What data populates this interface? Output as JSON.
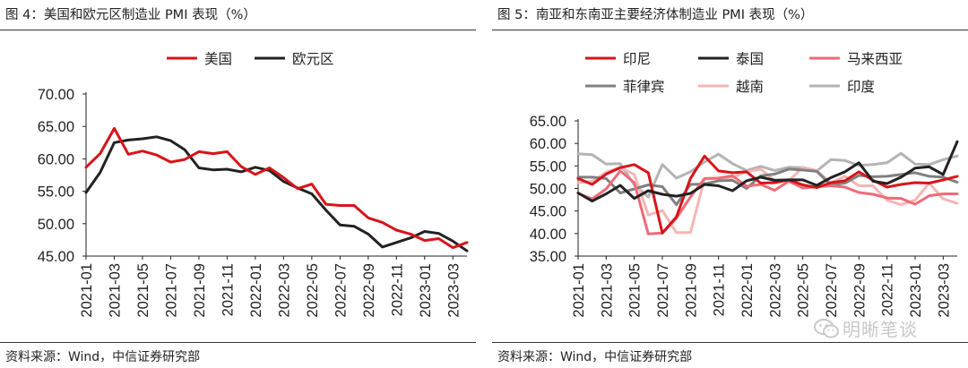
{
  "left": {
    "title": "图 4：美国和欧元区制造业 PMI 表现（%）",
    "source": "资料来源：Wind，中信证券研究部"
  },
  "right": {
    "title": "图 5：南亚和东南亚主要经济体制造业 PMI 表现（%）",
    "source": "资料来源：Wind，中信证券研究部"
  },
  "watermark": "明晰笔谈",
  "chart_data": [
    {
      "type": "line",
      "title": "",
      "xlabel": "",
      "ylabel": "",
      "x": [
        "2021-01",
        "2021-02",
        "2021-03",
        "2021-04",
        "2021-05",
        "2021-06",
        "2021-07",
        "2021-08",
        "2021-09",
        "2021-10",
        "2021-11",
        "2021-12",
        "2022-01",
        "2022-02",
        "2022-03",
        "2022-04",
        "2022-05",
        "2022-06",
        "2022-07",
        "2022-08",
        "2022-09",
        "2022-10",
        "2022-11",
        "2022-12",
        "2023-01",
        "2023-02",
        "2023-03",
        "2023-04"
      ],
      "xticks": [
        "2021-01",
        "2021-03",
        "2021-05",
        "2021-07",
        "2021-09",
        "2021-11",
        "2022-01",
        "2022-03",
        "2022-05",
        "2022-07",
        "2022-09",
        "2022-11",
        "2023-01",
        "2023-03"
      ],
      "yticks": [
        "70.00",
        "65.00",
        "60.00",
        "55.00",
        "50.00",
        "45.00"
      ],
      "ylim": [
        45,
        70
      ],
      "legend_position": "top",
      "series": [
        {
          "name": "美国",
          "color": "#d7141a",
          "values": [
            58.7,
            60.8,
            64.7,
            60.7,
            61.2,
            60.6,
            59.5,
            59.9,
            61.1,
            60.8,
            61.1,
            58.8,
            57.6,
            58.6,
            57.1,
            55.4,
            56.1,
            53.0,
            52.8,
            52.8,
            50.9,
            50.2,
            49.0,
            48.4,
            47.4,
            47.7,
            46.3,
            47.1
          ]
        },
        {
          "name": "欧元区",
          "color": "#222222",
          "values": [
            54.8,
            57.9,
            62.5,
            62.9,
            63.1,
            63.4,
            62.8,
            61.4,
            58.6,
            58.3,
            58.4,
            58.0,
            58.7,
            58.2,
            56.5,
            55.5,
            54.6,
            52.1,
            49.8,
            49.6,
            48.4,
            46.4,
            47.1,
            47.8,
            48.8,
            48.5,
            47.3,
            45.8
          ]
        }
      ]
    },
    {
      "type": "line",
      "title": "",
      "xlabel": "",
      "ylabel": "",
      "x": [
        "2021-01",
        "2021-02",
        "2021-03",
        "2021-04",
        "2021-05",
        "2021-06",
        "2021-07",
        "2021-08",
        "2021-09",
        "2021-10",
        "2021-11",
        "2021-12",
        "2022-01",
        "2022-02",
        "2022-03",
        "2022-04",
        "2022-05",
        "2022-06",
        "2022-07",
        "2022-08",
        "2022-09",
        "2022-10",
        "2022-11",
        "2022-12",
        "2023-01",
        "2023-02",
        "2023-03",
        "2023-04"
      ],
      "xticks": [
        "2021-01",
        "2021-03",
        "2021-05",
        "2021-07",
        "2021-09",
        "2021-11",
        "2022-01",
        "2022-03",
        "2022-05",
        "2022-07",
        "2022-09",
        "2022-11",
        "2023-01",
        "2023-03"
      ],
      "yticks": [
        "65.00",
        "60.00",
        "55.00",
        "50.00",
        "45.00",
        "40.00",
        "35.00"
      ],
      "ylim": [
        35,
        65
      ],
      "legend_position": "top",
      "series": [
        {
          "name": "印尼",
          "color": "#d7141a",
          "values": [
            52.2,
            50.9,
            53.2,
            54.6,
            55.3,
            53.5,
            40.1,
            43.7,
            52.2,
            57.2,
            53.9,
            53.5,
            53.7,
            51.2,
            51.3,
            51.9,
            50.8,
            50.2,
            51.3,
            51.7,
            53.7,
            51.8,
            50.3,
            50.9,
            51.3,
            51.2,
            51.9,
            52.7
          ]
        },
        {
          "name": "泰国",
          "color": "#222222",
          "values": [
            49.0,
            47.2,
            48.8,
            50.7,
            47.8,
            49.5,
            48.7,
            48.3,
            48.9,
            50.9,
            50.6,
            49.5,
            51.7,
            52.5,
            51.8,
            51.9,
            51.9,
            50.7,
            52.4,
            53.7,
            55.7,
            51.6,
            51.1,
            52.5,
            54.5,
            54.8,
            53.1,
            60.4
          ]
        },
        {
          "name": "马来西亚",
          "color": "#f06a78",
          "values": [
            48.9,
            47.7,
            49.9,
            53.9,
            51.3,
            39.9,
            40.1,
            43.4,
            48.1,
            52.2,
            52.3,
            52.8,
            50.5,
            50.9,
            49.6,
            51.6,
            50.1,
            50.4,
            50.6,
            50.3,
            49.1,
            48.7,
            47.9,
            47.8,
            46.5,
            48.4,
            48.8,
            48.8
          ]
        },
        {
          "name": "菲律宾",
          "color": "#808080",
          "values": [
            52.5,
            52.5,
            52.2,
            49.0,
            49.9,
            50.8,
            50.4,
            46.4,
            50.9,
            51.0,
            51.7,
            51.8,
            50.0,
            52.8,
            53.2,
            54.3,
            54.1,
            53.8,
            50.8,
            51.2,
            52.9,
            52.6,
            52.7,
            53.1,
            53.5,
            52.7,
            52.5,
            51.4
          ]
        },
        {
          "name": "越南",
          "color": "#f4b6b4",
          "values": [
            51.3,
            51.6,
            53.6,
            54.7,
            53.1,
            44.1,
            45.1,
            40.2,
            40.2,
            52.1,
            52.2,
            52.5,
            53.7,
            54.3,
            51.7,
            51.7,
            54.7,
            54.0,
            51.2,
            52.7,
            50.6,
            50.6,
            47.4,
            46.4,
            47.4,
            51.2,
            47.7,
            46.7
          ]
        },
        {
          "name": "印度",
          "color": "#b4b4b4",
          "values": [
            57.7,
            57.5,
            55.4,
            55.5,
            50.8,
            48.1,
            55.3,
            52.3,
            53.7,
            55.9,
            57.6,
            55.5,
            54.0,
            54.9,
            54.0,
            54.7,
            54.6,
            53.9,
            56.4,
            56.2,
            55.1,
            55.3,
            55.7,
            57.8,
            55.4,
            55.3,
            56.4,
            57.2
          ]
        }
      ]
    }
  ]
}
